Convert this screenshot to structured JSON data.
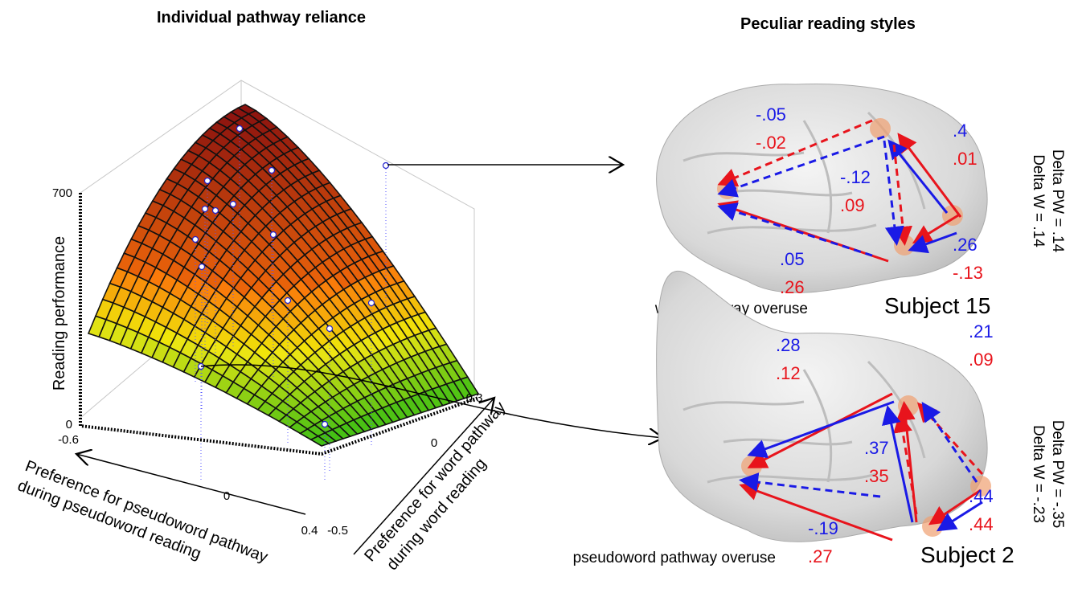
{
  "left": {
    "title": "Individual pathway reliance",
    "z_axis": {
      "label": "Reading performance",
      "ticks": [
        "700",
        "0"
      ]
    },
    "x_axis": {
      "label": [
        "Preference for pseudoword pathway",
        "during pseudoword reading"
      ],
      "ticks": [
        "-0.6",
        "0",
        "0.4"
      ]
    },
    "y_axis": {
      "label": [
        "Preference for word pathway",
        "during word reading"
      ],
      "ticks": [
        "-0.5",
        "0",
        "0.3"
      ]
    }
  },
  "right": {
    "title": "Peculiar reading styles",
    "subjects": [
      {
        "name": "Subject 15",
        "style": "word pathway overuse",
        "delta": [
          "Delta PW = .14",
          "Delta W = .14"
        ],
        "paths": [
          {
            "blue": "-.05",
            "red": "-.02"
          },
          {
            "blue": ".4",
            "red": ".01"
          },
          {
            "blue": "-.12",
            "red": ".09"
          },
          {
            "blue": ".05",
            "red": ".26"
          },
          {
            "blue": ".26",
            "red": "-.13"
          }
        ]
      },
      {
        "name": "Subject 2",
        "style": "pseudoword pathway overuse",
        "delta": [
          "Delta PW = -.35",
          "Delta W = -.23"
        ],
        "paths": [
          {
            "blue": ".28",
            "red": ".12"
          },
          {
            "blue": ".21",
            "red": ".09"
          },
          {
            "blue": ".37",
            "red": ".35"
          },
          {
            "blue": "-.19",
            "red": ".27"
          },
          {
            "blue": ".44",
            "red": ".44"
          }
        ]
      }
    ]
  }
}
